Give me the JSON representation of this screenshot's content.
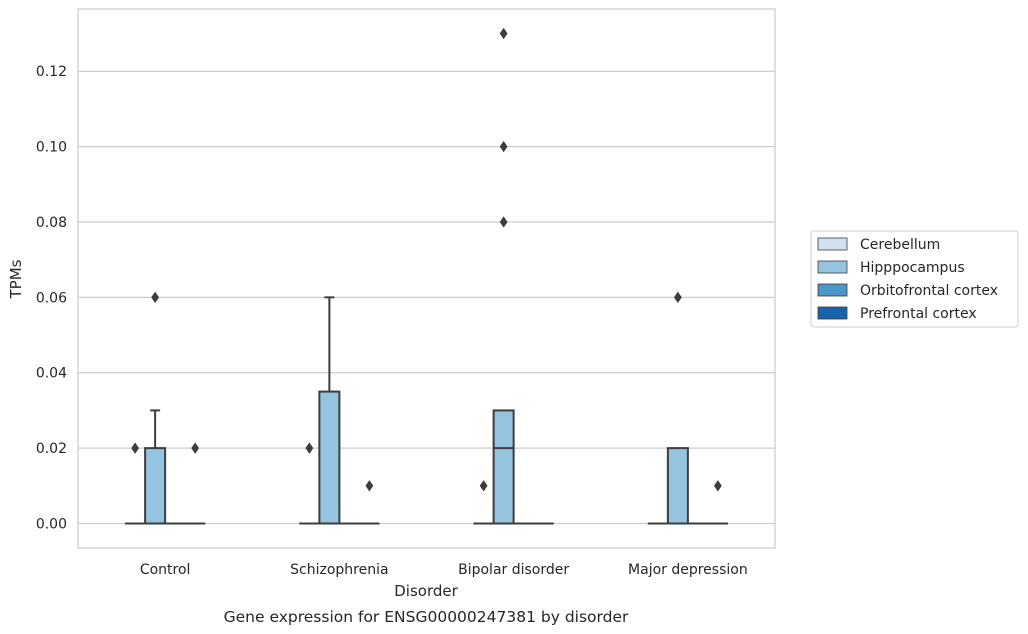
{
  "chart_data": {
    "type": "box",
    "title": "",
    "caption": "Gene expression for ENSG00000247381 by disorder",
    "xlabel": "Disorder",
    "ylabel": "TPMs",
    "ylim": [
      -0.0065,
      0.1365
    ],
    "yticks": [
      0.0,
      0.02,
      0.04,
      0.06,
      0.08,
      0.1,
      0.12
    ],
    "ytick_labels": [
      "0.00",
      "0.02",
      "0.04",
      "0.06",
      "0.08",
      "0.10",
      "0.12"
    ],
    "grid": "y",
    "legend_position": "right",
    "categories": [
      "Control",
      "Schizophrenia",
      "Bipolar disorder",
      "Major depression"
    ],
    "series": [
      {
        "name": "Cerebellum",
        "color": "#d0e1f2",
        "boxes": [
          {
            "q1": 0,
            "median": 0,
            "q3": 0,
            "whisker_low": 0,
            "whisker_high": 0,
            "outliers": []
          },
          {
            "q1": 0,
            "median": 0,
            "q3": 0,
            "whisker_low": 0,
            "whisker_high": 0,
            "outliers": []
          },
          {
            "q1": 0,
            "median": 0,
            "q3": 0,
            "whisker_low": 0,
            "whisker_high": 0,
            "outliers": [
              0.01
            ]
          },
          {
            "q1": 0,
            "median": 0,
            "q3": 0,
            "whisker_low": 0,
            "whisker_high": 0,
            "outliers": []
          }
        ]
      },
      {
        "name": "Hipppocampus",
        "color": "#94c4df",
        "boxes": [
          {
            "q1": 0,
            "median": 0,
            "q3": 0.02,
            "whisker_low": 0,
            "whisker_high": 0.03,
            "outliers": [
              0.06
            ]
          },
          {
            "q1": 0,
            "median": 0,
            "q3": 0.035,
            "whisker_low": 0,
            "whisker_high": 0.06,
            "outliers": []
          },
          {
            "q1": 0,
            "median": 0.02,
            "q3": 0.03,
            "whisker_low": 0,
            "whisker_high": 0.03,
            "outliers": [
              0.08,
              0.1,
              0.13
            ]
          },
          {
            "q1": 0,
            "median": 0,
            "q3": 0.02,
            "whisker_low": 0,
            "whisker_high": 0.02,
            "outliers": [
              0.06
            ]
          }
        ]
      },
      {
        "name": "Orbitofrontal cortex",
        "color": "#4a98c9",
        "boxes": [
          {
            "q1": 0,
            "median": 0,
            "q3": 0,
            "whisker_low": 0,
            "whisker_high": 0,
            "outliers": []
          },
          {
            "q1": 0,
            "median": 0,
            "q3": 0,
            "whisker_low": 0,
            "whisker_high": 0,
            "outliers": []
          },
          {
            "q1": 0,
            "median": 0,
            "q3": 0,
            "whisker_low": 0,
            "whisker_high": 0,
            "outliers": []
          },
          {
            "q1": 0,
            "median": 0,
            "q3": 0,
            "whisker_low": 0,
            "whisker_high": 0,
            "outliers": []
          }
        ]
      },
      {
        "name": "Prefrontal cortex",
        "color": "#1764ab",
        "boxes": [
          {
            "q1": 0,
            "median": 0,
            "q3": 0,
            "whisker_low": 0,
            "whisker_high": 0,
            "outliers": [
              0.02
            ]
          },
          {
            "q1": 0,
            "median": 0,
            "q3": 0,
            "whisker_low": 0,
            "whisker_high": 0,
            "outliers": [
              0.01
            ]
          },
          {
            "q1": 0,
            "median": 0,
            "q3": 0,
            "whisker_low": 0,
            "whisker_high": 0,
            "outliers": []
          },
          {
            "q1": 0,
            "median": 0,
            "q3": 0,
            "whisker_low": 0,
            "whisker_high": 0,
            "outliers": [
              0.01
            ]
          }
        ]
      }
    ],
    "extra_outliers": [
      {
        "category": "Control",
        "series_slot": 0,
        "value": 0.02
      },
      {
        "category": "Schizophrenia",
        "series_slot": 0,
        "value": 0.02
      }
    ],
    "colors": {
      "grid": "#cccccc",
      "frame": "#cccccc",
      "box_edge": "#3d3d3d",
      "text": "#262626"
    }
  }
}
